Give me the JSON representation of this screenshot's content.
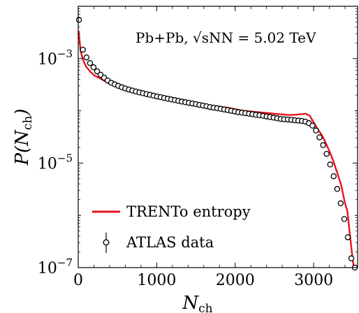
{
  "chart_data": {
    "type": "line",
    "annotation": "Pb+Pb, √sNN = 5.02 TeV",
    "xlabel": "N",
    "xlabel_sub": "ch",
    "ylabel": "P(N",
    "ylabel_sub": "ch",
    "ylabel_close": ")",
    "y_scale": "log",
    "xlim": [
      0,
      3560
    ],
    "ylim_log10": [
      -7,
      -2
    ],
    "x_ticks": [
      0,
      1000,
      2000,
      3000
    ],
    "x_tick_labels": [
      "0",
      "1000",
      "2000",
      "3000"
    ],
    "y_ticks_log10": [
      -7,
      -5,
      -3
    ],
    "y_tick_labels": [
      {
        "base": "10",
        "exp": "−7"
      },
      {
        "base": "10",
        "exp": "−5"
      },
      {
        "base": "10",
        "exp": "−3"
      }
    ],
    "legend_position": "bottom-left",
    "series": [
      {
        "name": "TRENTo entropy",
        "style": "line",
        "color": "#e8141b",
        "x": [
          5,
          30,
          60,
          100,
          150,
          200,
          300,
          400,
          500,
          700,
          900,
          1100,
          1300,
          1500,
          1700,
          1900,
          2100,
          2300,
          2500,
          2700,
          2800,
          2900,
          2950,
          3000,
          3050,
          3100,
          3150,
          3200,
          3250,
          3300,
          3350,
          3400,
          3430,
          3460,
          3490,
          3510
        ],
        "y": [
          0.0034,
          0.0014,
          0.00095,
          0.0007,
          0.00057,
          0.00048,
          0.0004,
          0.00033,
          0.00029,
          0.00024,
          0.00021,
          0.00019,
          0.00016,
          0.00014,
          0.000125,
          0.000115,
          0.0001,
          9.4e-05,
          8.8e-05,
          8.3e-05,
          8.5e-05,
          8.8e-05,
          8e-05,
          6e-05,
          4.5e-05,
          3.5e-05,
          2.5e-05,
          1.7e-05,
          1.1e-05,
          6.5e-06,
          3.8e-06,
          1.7e-06,
          1.2e-06,
          4.5e-07,
          1.8e-07,
          1e-07
        ]
      },
      {
        "name": "ATLAS data",
        "style": "open-circle",
        "color": "#000000",
        "x": [
          10,
          60,
          105,
          150,
          195,
          240,
          285,
          330,
          375,
          420,
          465,
          510,
          555,
          600,
          645,
          690,
          735,
          780,
          825,
          870,
          915,
          960,
          1005,
          1050,
          1095,
          1140,
          1185,
          1230,
          1275,
          1320,
          1365,
          1410,
          1455,
          1500,
          1545,
          1590,
          1635,
          1680,
          1725,
          1770,
          1815,
          1860,
          1905,
          1950,
          1995,
          2040,
          2085,
          2130,
          2175,
          2220,
          2265,
          2310,
          2355,
          2400,
          2445,
          2490,
          2535,
          2580,
          2625,
          2670,
          2715,
          2760,
          2805,
          2850,
          2895,
          2940,
          2985,
          3030,
          3075,
          3120,
          3165,
          3210,
          3255,
          3300,
          3345,
          3390,
          3435,
          3480,
          3525
        ],
        "y": [
          0.0055,
          0.00148,
          0.00105,
          0.00082,
          0.00068,
          0.00057,
          0.00049,
          0.00043,
          0.00038,
          0.000345,
          0.00032,
          0.0003,
          0.000282,
          0.000268,
          0.000255,
          0.000244,
          0.000234,
          0.000225,
          0.000217,
          0.000209,
          0.000202,
          0.000195,
          0.000188,
          0.000182,
          0.000176,
          0.00017,
          0.000165,
          0.00016,
          0.000155,
          0.00015,
          0.000146,
          0.000142,
          0.000138,
          0.000134,
          0.00013,
          0.000126,
          0.000122,
          0.000118,
          0.000115,
          0.000112,
          0.000109,
          0.000106,
          0.000103,
          0.0001,
          9.7e-05,
          9.4e-05,
          9.2e-05,
          9e-05,
          8.8e-05,
          8.6e-05,
          8.4e-05,
          8.2e-05,
          8e-05,
          7.8e-05,
          7.6e-05,
          7.4e-05,
          7.2e-05,
          7e-05,
          6.9e-05,
          6.8e-05,
          6.7e-05,
          6.6e-05,
          6.5e-05,
          6.4e-05,
          6.2e-05,
          5.8e-05,
          5.2e-05,
          4.2e-05,
          3.1e-05,
          2.2e-05,
          1.5e-05,
          9.4e-06,
          5.6e-06,
          3.2e-06,
          1.7e-06,
          8.5e-07,
          3.8e-07,
          1.5e-07,
          1e-07
        ]
      }
    ]
  }
}
